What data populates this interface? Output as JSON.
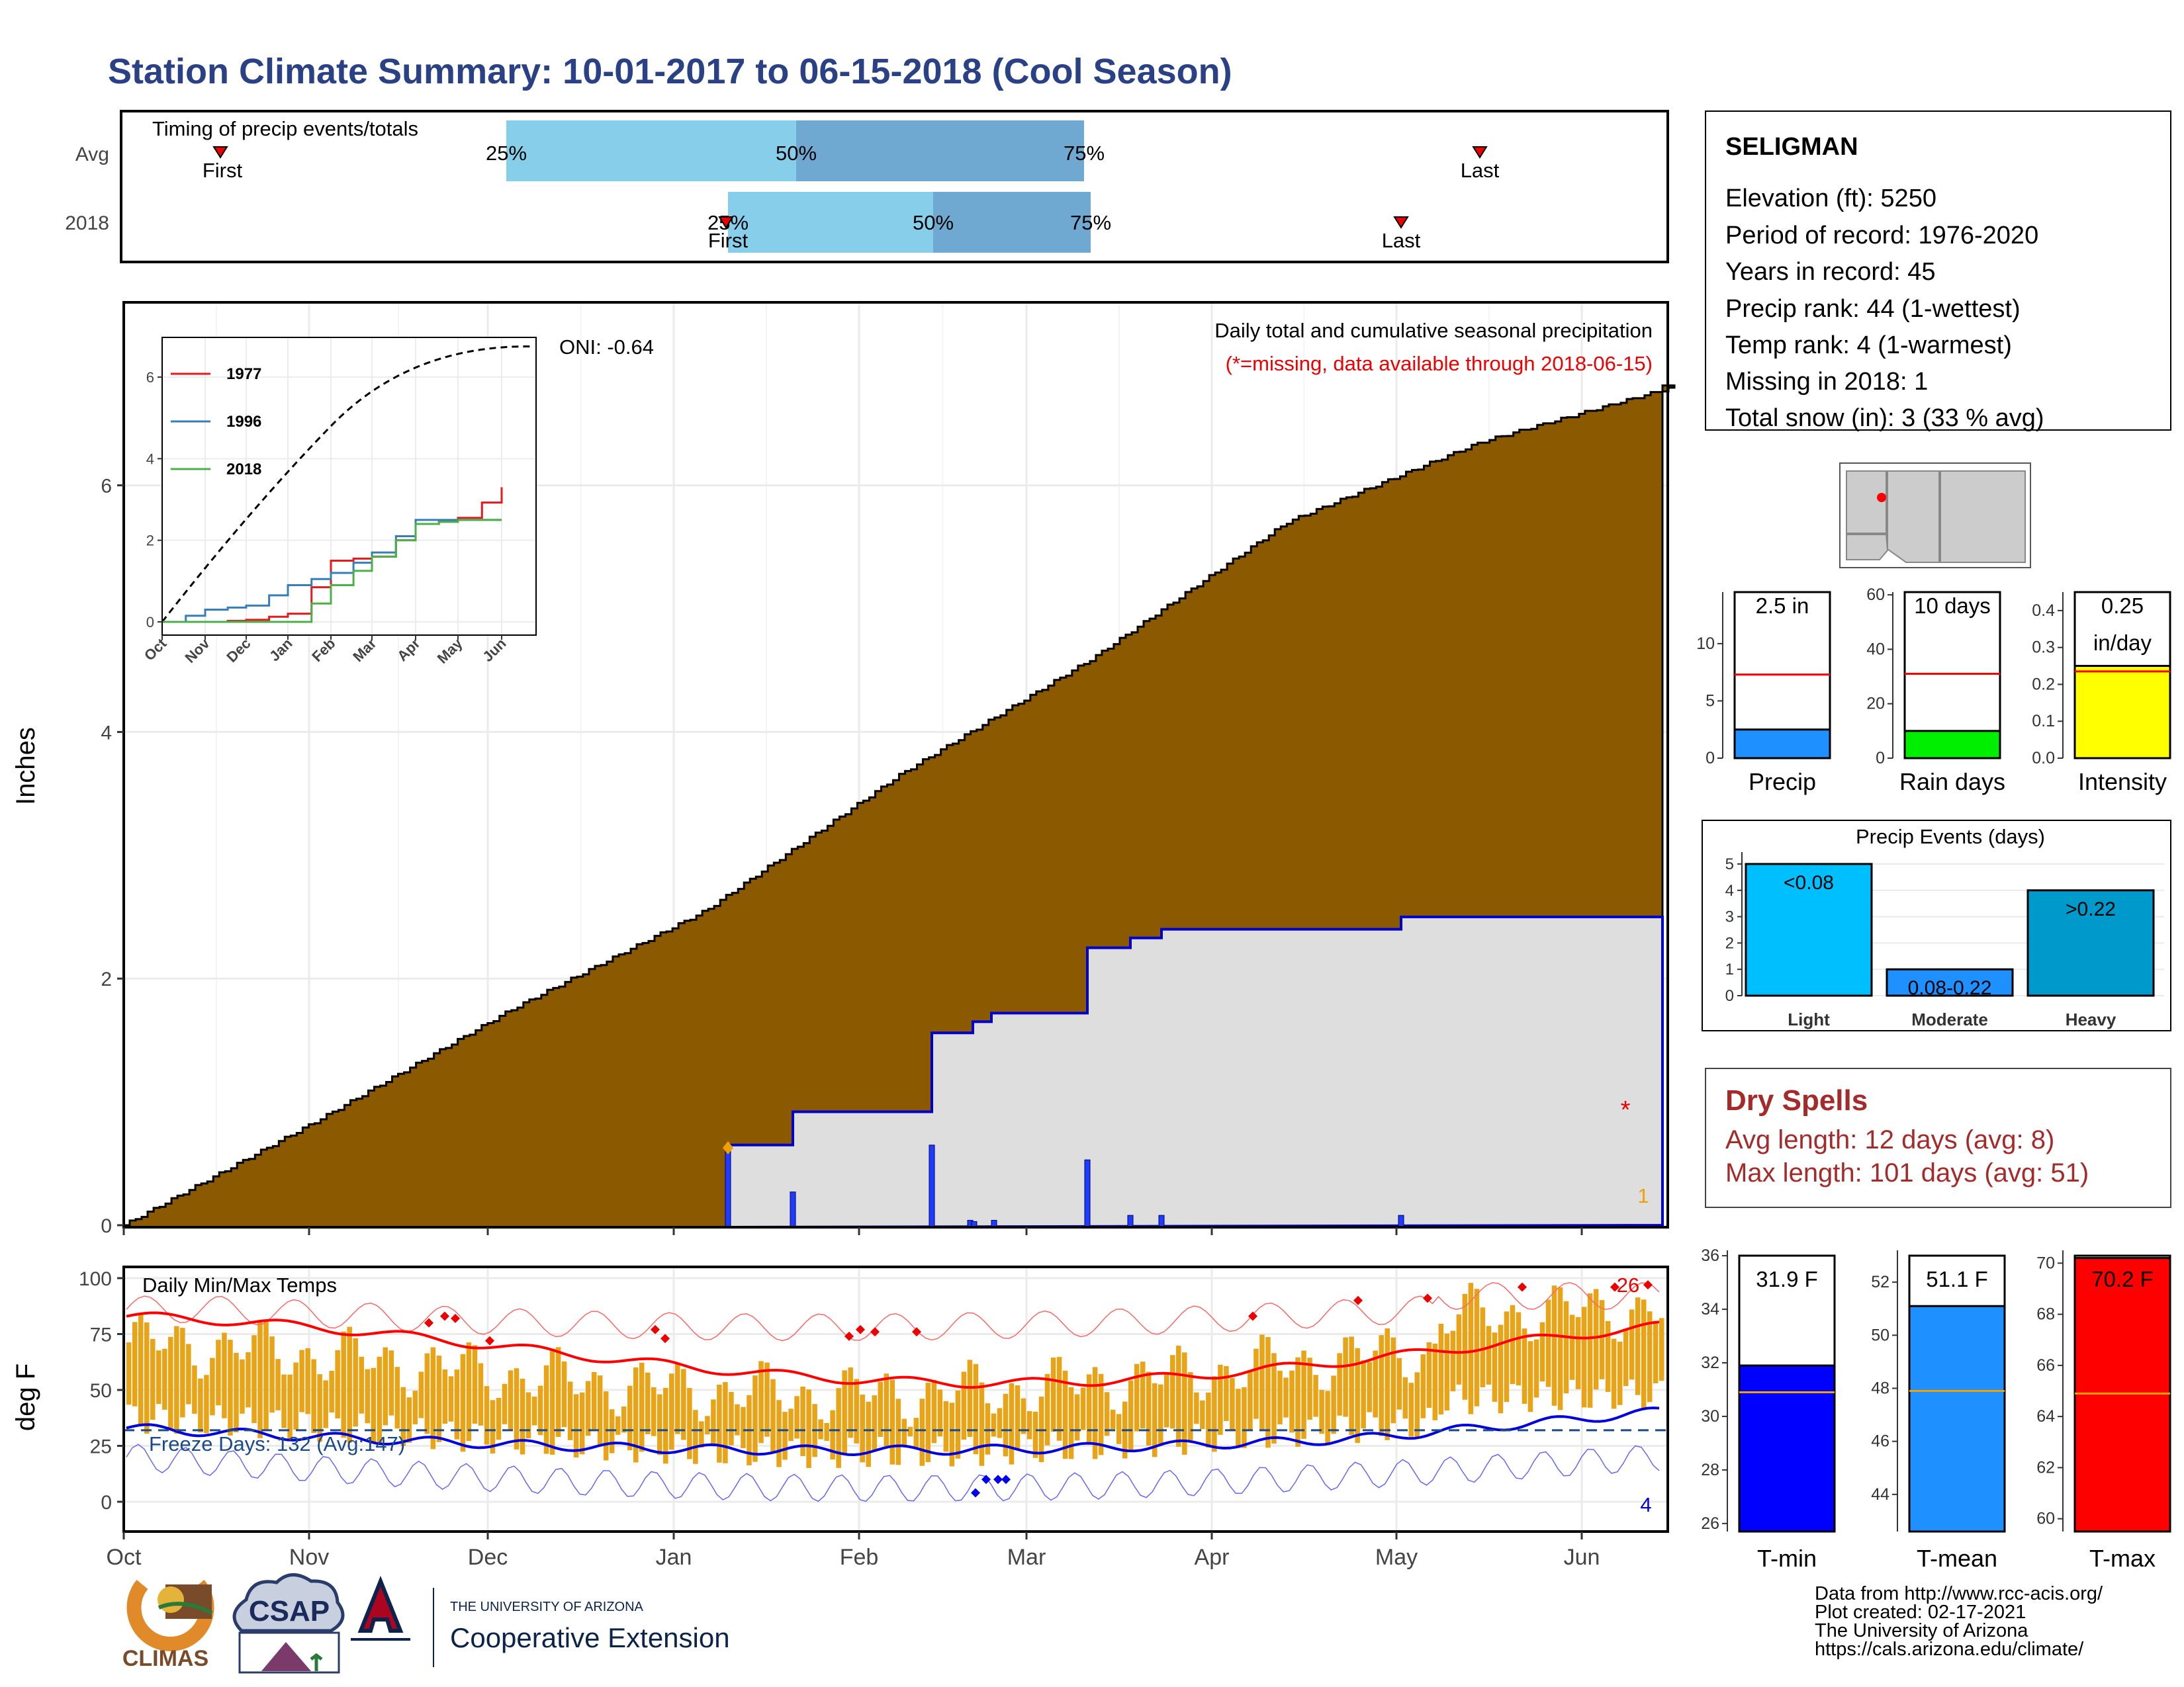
{
  "title": "Station Climate Summary: 10-01-2017 to 06-15-2018 (Cool Season)",
  "months": [
    "Oct",
    "Nov",
    "Dec",
    "Jan",
    "Feb",
    "Mar",
    "Apr",
    "May",
    "Jun"
  ],
  "timing": {
    "label": "Timing of precip events/totals",
    "rows": [
      "Avg",
      "2018"
    ],
    "first_label": "First",
    "last_label": "Last",
    "pct_labels": [
      "25%",
      "50%",
      "75%"
    ]
  },
  "station": {
    "name": "SELIGMAN",
    "elevation": "Elevation (ft): 5250",
    "period": "Period of record: 1976-2020",
    "years": "Years in record: 45",
    "precip_rank": "Precip rank: 44 (1-wettest)",
    "temp_rank": "Temp rank: 4 (1-warmest)",
    "missing": "Missing in 2018: 1",
    "snow": "Total snow (in): 3 (33 % avg)"
  },
  "main": {
    "ylabel": "Inches",
    "yticks": [
      "0",
      "2",
      "4",
      "6"
    ],
    "note1": "Daily total and cumulative seasonal precipitation",
    "note2": "(*=missing, data available through 2018-06-15)",
    "oni": "ONI: -0.64",
    "missing_marker": "*",
    "corner_count": "1"
  },
  "inset": {
    "yticks": [
      "0",
      "2",
      "4",
      "6"
    ],
    "months": [
      "Oct",
      "Nov",
      "Dec",
      "Jan",
      "Feb",
      "Mar",
      "Apr",
      "May",
      "Jun"
    ],
    "legend": [
      "1977",
      "1996",
      "2018"
    ]
  },
  "small_bars": {
    "precip": {
      "label": "Precip",
      "value_text": "2.5 in",
      "yticks": [
        "0",
        "5",
        "10"
      ]
    },
    "rain_days": {
      "label": "Rain days",
      "value_text": "10 days",
      "yticks": [
        "0",
        "20",
        "40",
        "60"
      ]
    },
    "intensity": {
      "label": "Intensity",
      "value_text1": "0.25",
      "value_text2": "in/day",
      "yticks": [
        "0.0",
        "0.1",
        "0.2",
        "0.3",
        "0.4"
      ]
    }
  },
  "events": {
    "title": "Precip Events (days)",
    "categories": [
      "Light",
      "Moderate",
      "Heavy"
    ],
    "bar_labels": [
      "<0.08",
      "0.08-0.22",
      ">0.22"
    ],
    "yticks": [
      "0",
      "1",
      "2",
      "3",
      "4",
      "5"
    ]
  },
  "dry_spells": {
    "title": "Dry Spells",
    "avg": "Avg length: 12 days (avg: 8)",
    "max": "Max length: 101 days (avg: 51)"
  },
  "temps": {
    "ylabel": "deg F",
    "label": "Daily Min/Max Temps",
    "yticks": [
      "0",
      "25",
      "50",
      "75",
      "100"
    ],
    "freeze": "Freeze Days: 132 (Avg:147)",
    "hot_count": "26",
    "cold_count": "4"
  },
  "temp_bars": {
    "tmin": {
      "label": "T-min",
      "value_text": "31.9 F",
      "yticks": [
        "26",
        "28",
        "30",
        "32",
        "34",
        "36"
      ]
    },
    "tmean": {
      "label": "T-mean",
      "value_text": "51.1 F",
      "yticks": [
        "44",
        "46",
        "48",
        "50",
        "52"
      ]
    },
    "tmax": {
      "label": "T-max",
      "value_text": "70.2 F",
      "yticks": [
        "60",
        "62",
        "64",
        "66",
        "68",
        "70"
      ]
    }
  },
  "footer": {
    "line1": "Data from http://www.rcc-acis.org/",
    "line2": "Plot created: 02-17-2021",
    "line3": "The University of Arizona",
    "line4": "https://cals.arizona.edu/climate/",
    "climas": "CLIMAS",
    "csap": "CSAP",
    "ua_small": "THE UNIVERSITY OF ARIZONA",
    "ua_big": "Cooperative Extension"
  },
  "colors": {
    "title": "#2a4185",
    "cumulative_2018": "#8b5a00",
    "blue_line": "#0000cc",
    "dry_red": "#a52a2a",
    "temp_bar": "#e8a317",
    "bar_precip": "#1e90ff",
    "bar_rain": "#00ee00",
    "bar_intensity": "#ffff00",
    "bar_light": "#00bfff",
    "bar_moderate": "#1e90ff",
    "bar_heavy": "#0099cc",
    "tmin": "#0000ff",
    "tmean": "#1e90ff",
    "tmax": "#ff0000"
  },
  "chart_data": [
    {
      "type": "area",
      "title": "Daily total and cumulative seasonal precipitation",
      "ylabel": "Inches",
      "ylim": [
        0,
        7.5
      ],
      "x": [
        "Oct",
        "Nov",
        "Dec",
        "Jan",
        "Feb",
        "Mar",
        "Apr",
        "May",
        "Jun"
      ],
      "series": [
        {
          "values": [
            0,
            0.85,
            1.75,
            2.55,
            3.65,
            4.6,
            5.7,
            6.35,
            6.8
          ]
        },
        {
          "values": [
            0,
            0,
            0,
            0,
            0.9,
            1.8,
            2.4,
            2.5,
            2.5
          ]
        }
      ]
    },
    {
      "type": "line",
      "x": [
        "Oct",
        "Nov",
        "Dec",
        "Jan",
        "Feb",
        "Mar",
        "Apr",
        "May",
        "Jun"
      ],
      "ylim": [
        0,
        7
      ],
      "series": [
        {
          "name": "1977",
          "values": [
            0,
            0,
            0.05,
            0.2,
            1.5,
            1.6,
            2.4,
            2.55,
            3.3
          ]
        },
        {
          "name": "1996",
          "values": [
            0,
            0.3,
            0.4,
            0.9,
            1.2,
            1.7,
            2.5,
            2.5,
            2.5
          ]
        },
        {
          "name": "2018",
          "values": [
            0,
            0,
            0,
            0,
            0.9,
            1.6,
            2.4,
            2.5,
            2.5
          ]
        }
      ]
    },
    {
      "type": "bar",
      "categories": [
        "Light",
        "Moderate",
        "Heavy"
      ],
      "values": [
        5,
        1,
        4
      ]
    },
    {
      "type": "bar",
      "categories": [
        "Precip",
        "Rain days",
        "Intensity",
        "T-min",
        "T-mean",
        "T-max"
      ],
      "values": [
        2.5,
        10,
        0.25,
        31.9,
        51.1,
        70.2
      ]
    }
  ]
}
